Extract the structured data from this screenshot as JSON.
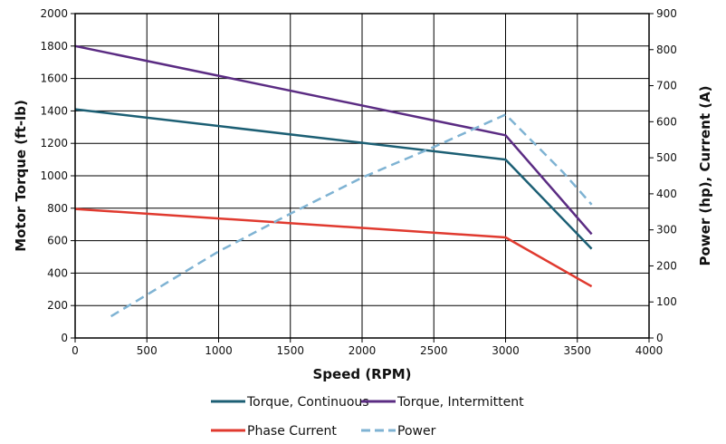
{
  "chart_data": {
    "type": "line",
    "title": "",
    "xlabel": "Speed (RPM)",
    "ylabel_left": "Motor Torque (ft-lb)",
    "ylabel_right": "Power (hp), Current (A)",
    "xlim": [
      0,
      4000
    ],
    "ylim_left": [
      0,
      2000
    ],
    "ylim_right": [
      0,
      900
    ],
    "x_ticks": [
      "0",
      "500",
      "1000",
      "1500",
      "2000",
      "2500",
      "3000",
      "3500",
      "4000"
    ],
    "y_left_ticks": [
      "0",
      "200",
      "400",
      "600",
      "800",
      "1000",
      "1200",
      "1400",
      "1600",
      "1800",
      "2000"
    ],
    "y_right_ticks": [
      "0",
      "100",
      "200",
      "300",
      "400",
      "500",
      "600",
      "700",
      "800",
      "900"
    ],
    "grid": true,
    "legend_position": "bottom",
    "series": [
      {
        "name": "Torque, Continuous",
        "axis": "left",
        "color": "#1c5f74",
        "dash": false,
        "x": [
          0,
          3000,
          3600
        ],
        "y": [
          1410,
          1100,
          550
        ]
      },
      {
        "name": "Torque, Intermittent",
        "axis": "left",
        "color": "#5b2c83",
        "dash": false,
        "x": [
          0,
          3000,
          3600
        ],
        "y": [
          1800,
          1250,
          640
        ]
      },
      {
        "name": "Phase Current",
        "axis": "right",
        "color": "#e03a2f",
        "dash": false,
        "x": [
          0,
          3000,
          3600
        ],
        "y": [
          358,
          279,
          143
        ]
      },
      {
        "name": "Power",
        "axis": "right",
        "color": "#7fb3d3",
        "dash": true,
        "x": [
          250,
          500,
          1000,
          1500,
          2000,
          2500,
          3000,
          3200,
          3400,
          3600
        ],
        "y": [
          60,
          120,
          240,
          345,
          445,
          530,
          620,
          540,
          460,
          370
        ]
      }
    ]
  }
}
